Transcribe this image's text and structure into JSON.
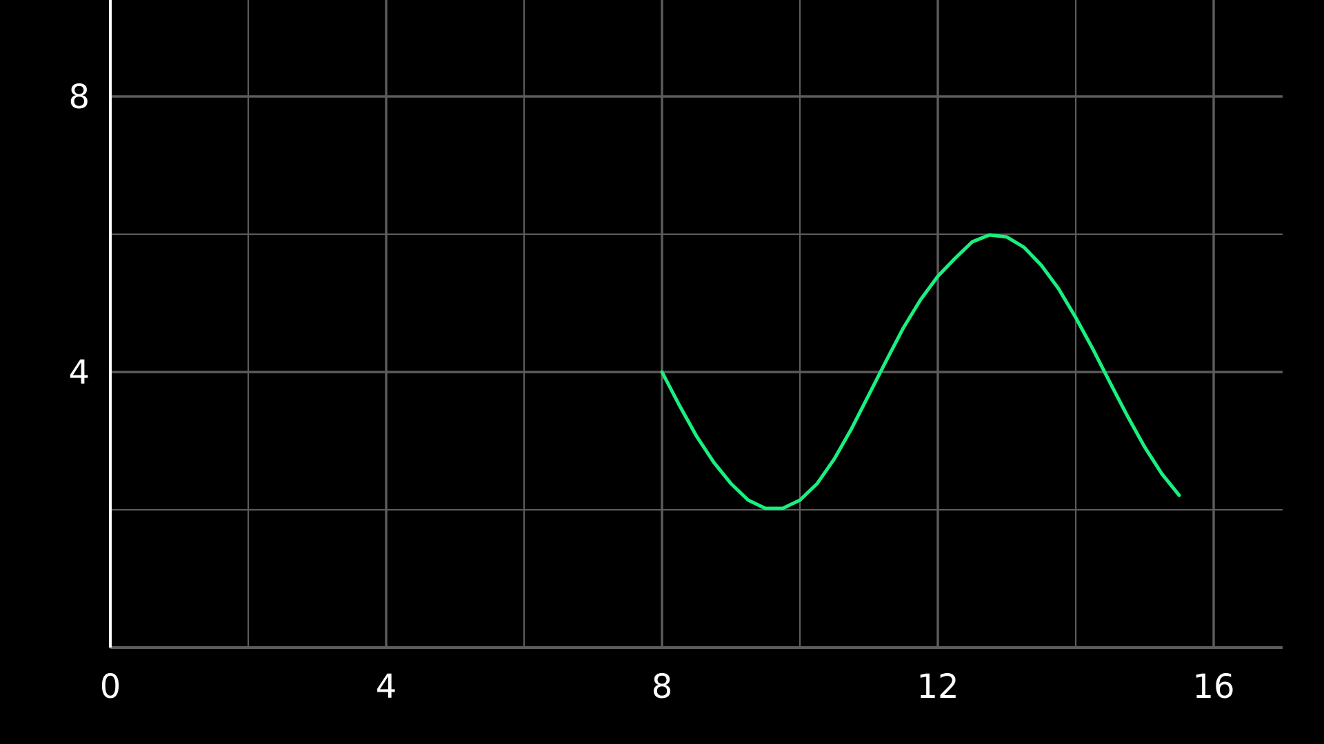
{
  "colors": {
    "background": "#000000",
    "grid": "#5c5c5c",
    "axis": "#ffffff",
    "series": "#19f07f",
    "text": "#ffffff"
  },
  "chart_data": {
    "type": "line",
    "title": "",
    "xlabel": "",
    "ylabel": "",
    "xlim": [
      0,
      17
    ],
    "ylim": [
      0,
      9.4
    ],
    "grid": true,
    "x_ticks": [
      0,
      4,
      8,
      12,
      16
    ],
    "x_tick_labels": [
      "0",
      "4",
      "8",
      "12",
      "16"
    ],
    "y_ticks": [
      4,
      8
    ],
    "y_tick_labels": [
      "4",
      "8"
    ],
    "x_grid_major": [
      4,
      8,
      12,
      16
    ],
    "x_grid_minor": [
      2,
      6,
      10,
      14
    ],
    "y_grid_major": [
      4,
      8
    ],
    "y_grid_minor": [
      2,
      6
    ],
    "series": [
      {
        "x": [
          8.0,
          8.25,
          8.5,
          8.75,
          9.0,
          9.25,
          9.5,
          9.75,
          10.0,
          10.25,
          10.5,
          10.75,
          11.0,
          11.25,
          11.5,
          11.75,
          12.0,
          12.25,
          12.5,
          12.75,
          13.0,
          13.25,
          13.5,
          13.75,
          14.0,
          14.25,
          14.5,
          14.75,
          15.0,
          15.25,
          15.5
        ],
        "y": [
          4.0,
          3.52,
          3.07,
          2.69,
          2.38,
          2.14,
          2.02,
          2.02,
          2.14,
          2.38,
          2.74,
          3.18,
          3.67,
          4.16,
          4.64,
          5.05,
          5.39,
          5.65,
          5.89,
          5.99,
          5.96,
          5.81,
          5.55,
          5.21,
          4.79,
          4.33,
          3.84,
          3.36,
          2.91,
          2.52,
          2.21
        ]
      }
    ]
  }
}
